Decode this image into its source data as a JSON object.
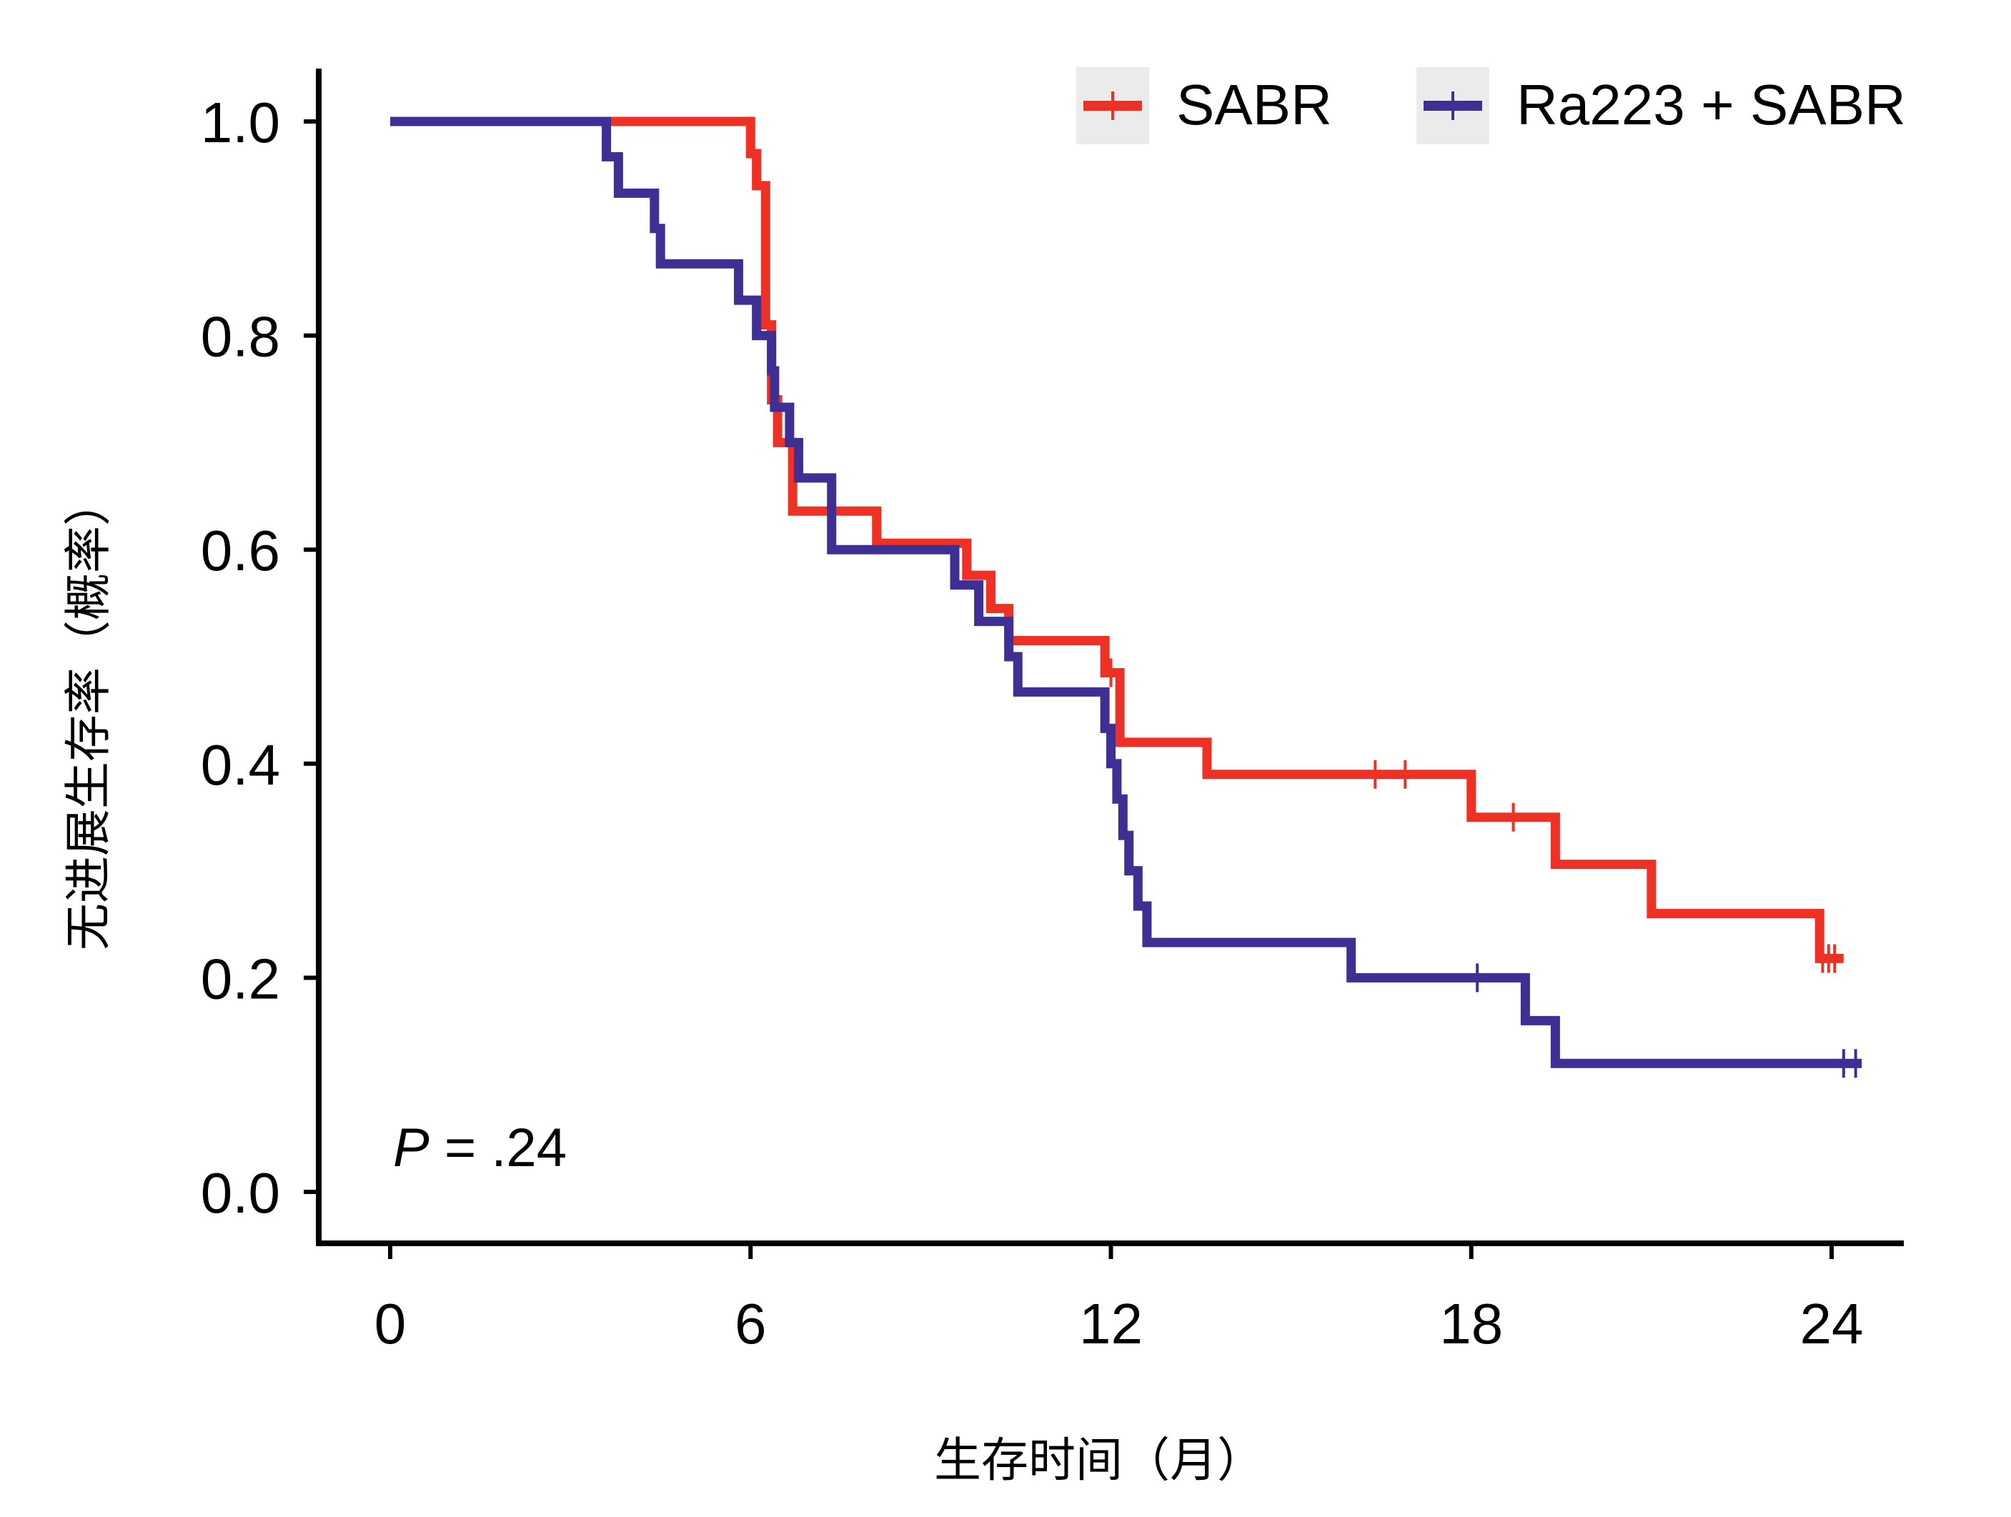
{
  "chart_data": {
    "type": "line",
    "subtype": "kaplan-meier step",
    "xlabel": "生存时间（月）",
    "ylabel": "无进展生存率（概率）",
    "xlim": [
      0,
      24
    ],
    "ylim": [
      0,
      1.0
    ],
    "x_ticks": [
      0,
      6,
      12,
      18,
      24
    ],
    "y_ticks": [
      0.0,
      0.2,
      0.4,
      0.6,
      0.8,
      1.0
    ],
    "x_tick_labels": [
      "0",
      "6",
      "12",
      "18",
      "24"
    ],
    "y_tick_labels": [
      "0.0",
      "0.2",
      "0.4",
      "0.6",
      "0.8",
      "1.0"
    ],
    "grid": false,
    "legend_position": "top-right",
    "annotation": {
      "italic": "P",
      "rest": " = .24"
    },
    "series": [
      {
        "name": "SABR",
        "color": "#EE3124",
        "steps": [
          [
            0,
            1.0
          ],
          [
            6.0,
            0.97
          ],
          [
            6.1,
            0.94
          ],
          [
            6.25,
            0.81
          ],
          [
            6.35,
            0.74
          ],
          [
            6.45,
            0.7
          ],
          [
            6.7,
            0.636
          ],
          [
            8.1,
            0.606
          ],
          [
            9.6,
            0.576
          ],
          [
            10.0,
            0.545
          ],
          [
            10.3,
            0.515
          ],
          [
            11.9,
            0.485
          ],
          [
            12.15,
            0.42
          ],
          [
            13.6,
            0.39
          ],
          [
            18.0,
            0.35
          ],
          [
            19.4,
            0.306
          ],
          [
            21.0,
            0.26
          ],
          [
            23.8,
            0.218
          ],
          [
            24.2,
            0.218
          ]
        ],
        "censor": [
          [
            12.0,
            0.485
          ],
          [
            16.4,
            0.39
          ],
          [
            16.9,
            0.39
          ],
          [
            18.7,
            0.35
          ],
          [
            23.85,
            0.218
          ],
          [
            23.95,
            0.218
          ],
          [
            24.05,
            0.218
          ]
        ]
      },
      {
        "name": "Ra223 + SABR",
        "color": "#3D2F94",
        "steps": [
          [
            0,
            1.0
          ],
          [
            3.6,
            0.967
          ],
          [
            3.8,
            0.933
          ],
          [
            4.4,
            0.9
          ],
          [
            4.5,
            0.867
          ],
          [
            5.8,
            0.833
          ],
          [
            6.1,
            0.8
          ],
          [
            6.35,
            0.767
          ],
          [
            6.4,
            0.733
          ],
          [
            6.65,
            0.7
          ],
          [
            6.8,
            0.667
          ],
          [
            7.35,
            0.6
          ],
          [
            9.4,
            0.567
          ],
          [
            9.8,
            0.533
          ],
          [
            10.3,
            0.5
          ],
          [
            10.45,
            0.467
          ],
          [
            11.9,
            0.433
          ],
          [
            12.0,
            0.4
          ],
          [
            12.1,
            0.367
          ],
          [
            12.2,
            0.333
          ],
          [
            12.3,
            0.3
          ],
          [
            12.45,
            0.267
          ],
          [
            12.6,
            0.233
          ],
          [
            16.0,
            0.2
          ],
          [
            18.9,
            0.16
          ],
          [
            19.4,
            0.12
          ],
          [
            24.5,
            0.12
          ]
        ],
        "censor": [
          [
            18.1,
            0.2
          ],
          [
            24.2,
            0.12
          ],
          [
            24.4,
            0.12
          ]
        ]
      }
    ]
  }
}
